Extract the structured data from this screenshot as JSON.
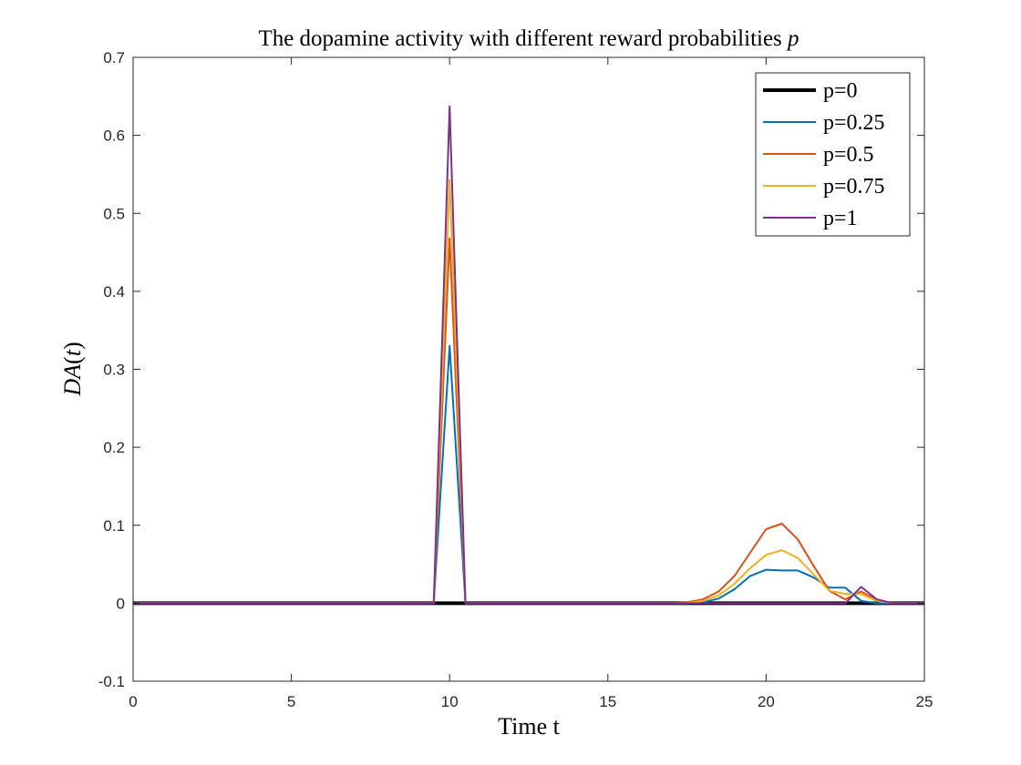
{
  "chart_data": {
    "type": "line",
    "title_main": "The dopamine activity with different reward probabilities",
    "title_var": "p",
    "xlabel": "Time t",
    "ylabel_var": "DA",
    "ylabel_open": "(",
    "ylabel_arg": "t",
    "ylabel_close": ")",
    "xlim": [
      0,
      25
    ],
    "ylim": [
      -0.1,
      0.7
    ],
    "xticks": [
      0,
      5,
      10,
      15,
      20,
      25
    ],
    "xtick_labels": [
      "0",
      "5",
      "10",
      "15",
      "20",
      "25"
    ],
    "yticks": [
      -0.1,
      0,
      0.1,
      0.2,
      0.3,
      0.4,
      0.5,
      0.6,
      0.7
    ],
    "ytick_labels": [
      "-0.1",
      "0",
      "0.1",
      "0.2",
      "0.3",
      "0.4",
      "0.5",
      "0.6",
      "0.7"
    ],
    "grid": false,
    "legend_position": "top-right",
    "series": [
      {
        "name": "p=0",
        "color": "#000000",
        "points": [
          [
            0,
            0
          ],
          [
            25,
            0
          ]
        ]
      },
      {
        "name": "p=0.25",
        "color": "#0072BD",
        "points": [
          [
            0,
            0
          ],
          [
            9.5,
            0
          ],
          [
            10,
            0.33
          ],
          [
            10.5,
            0
          ],
          [
            17.5,
            0
          ],
          [
            18,
            0.001
          ],
          [
            18.5,
            0.006
          ],
          [
            19,
            0.018
          ],
          [
            19.5,
            0.035
          ],
          [
            20,
            0.043
          ],
          [
            20.5,
            0.042
          ],
          [
            21,
            0.042
          ],
          [
            21.5,
            0.033
          ],
          [
            22,
            0.02
          ],
          [
            22.5,
            0.02
          ],
          [
            23,
            0.003
          ],
          [
            23.5,
            0
          ],
          [
            25,
            0
          ]
        ]
      },
      {
        "name": "p=0.5",
        "color": "#D95319",
        "points": [
          [
            0,
            0
          ],
          [
            9.5,
            0
          ],
          [
            10,
            0.468
          ],
          [
            10.5,
            0
          ],
          [
            17,
            0
          ],
          [
            17.5,
            0.001
          ],
          [
            18,
            0.005
          ],
          [
            18.5,
            0.015
          ],
          [
            19,
            0.035
          ],
          [
            19.5,
            0.065
          ],
          [
            20,
            0.095
          ],
          [
            20.5,
            0.102
          ],
          [
            21,
            0.082
          ],
          [
            21.5,
            0.048
          ],
          [
            22,
            0.016
          ],
          [
            22.5,
            0.005
          ],
          [
            23,
            0.015
          ],
          [
            23.5,
            0.004
          ],
          [
            24,
            0
          ],
          [
            25,
            0
          ]
        ]
      },
      {
        "name": "p=0.75",
        "color": "#EDB120",
        "points": [
          [
            0,
            0
          ],
          [
            9.5,
            0
          ],
          [
            10,
            0.543
          ],
          [
            10.5,
            0
          ],
          [
            17.5,
            0
          ],
          [
            18,
            0.003
          ],
          [
            18.5,
            0.01
          ],
          [
            19,
            0.025
          ],
          [
            19.5,
            0.045
          ],
          [
            20,
            0.062
          ],
          [
            20.5,
            0.068
          ],
          [
            21,
            0.058
          ],
          [
            21.5,
            0.037
          ],
          [
            22,
            0.016
          ],
          [
            22.5,
            0.012
          ],
          [
            23,
            0.012
          ],
          [
            23.5,
            0.003
          ],
          [
            24,
            0
          ],
          [
            25,
            0
          ]
        ]
      },
      {
        "name": "p=1",
        "color": "#7E2F8E",
        "points": [
          [
            0,
            0
          ],
          [
            9.5,
            0
          ],
          [
            10,
            0.637
          ],
          [
            10.5,
            0
          ],
          [
            22.5,
            0
          ],
          [
            23,
            0.021
          ],
          [
            23.5,
            0.005
          ],
          [
            24,
            0
          ],
          [
            25,
            0
          ]
        ]
      }
    ]
  }
}
